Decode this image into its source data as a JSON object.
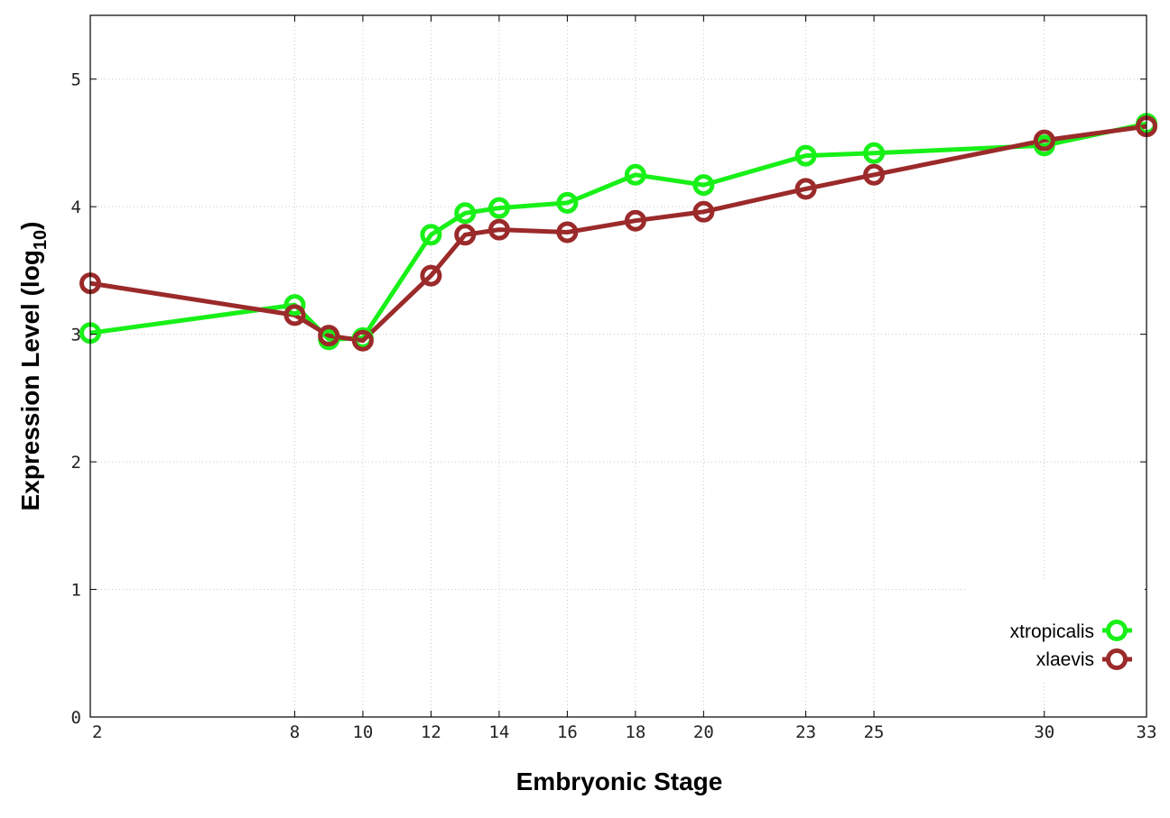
{
  "chart_data": {
    "type": "line",
    "xlabel": "Embryonic Stage",
    "ylabel": "Expression Level (log",
    "ylabel_subscript": "10",
    "ylabel_close": ")",
    "x_ticks": [
      2,
      8,
      10,
      12,
      14,
      16,
      18,
      20,
      23,
      25,
      30,
      33
    ],
    "y_ticks": [
      0,
      1,
      2,
      3,
      4,
      5
    ],
    "xlim": [
      2,
      33
    ],
    "ylim": [
      0,
      5.5
    ],
    "grid": true,
    "legend_position": "bottom-right",
    "series": [
      {
        "name": "xtropicalis",
        "color": "#18f018",
        "x": [
          2,
          8,
          9,
          10,
          12,
          13,
          14,
          16,
          18,
          20,
          23,
          25,
          30,
          33
        ],
        "y": [
          3.01,
          3.23,
          2.96,
          2.97,
          3.78,
          3.95,
          3.99,
          4.03,
          4.25,
          4.17,
          4.4,
          4.42,
          4.48,
          4.65
        ]
      },
      {
        "name": "xlaevis",
        "color": "#9b2a2a",
        "x": [
          2,
          8,
          9,
          10,
          12,
          13,
          14,
          16,
          18,
          20,
          23,
          25,
          30,
          33
        ],
        "y": [
          3.4,
          3.15,
          2.99,
          2.95,
          3.46,
          3.78,
          3.82,
          3.8,
          3.89,
          3.96,
          4.14,
          4.25,
          4.52,
          4.63
        ]
      }
    ]
  }
}
